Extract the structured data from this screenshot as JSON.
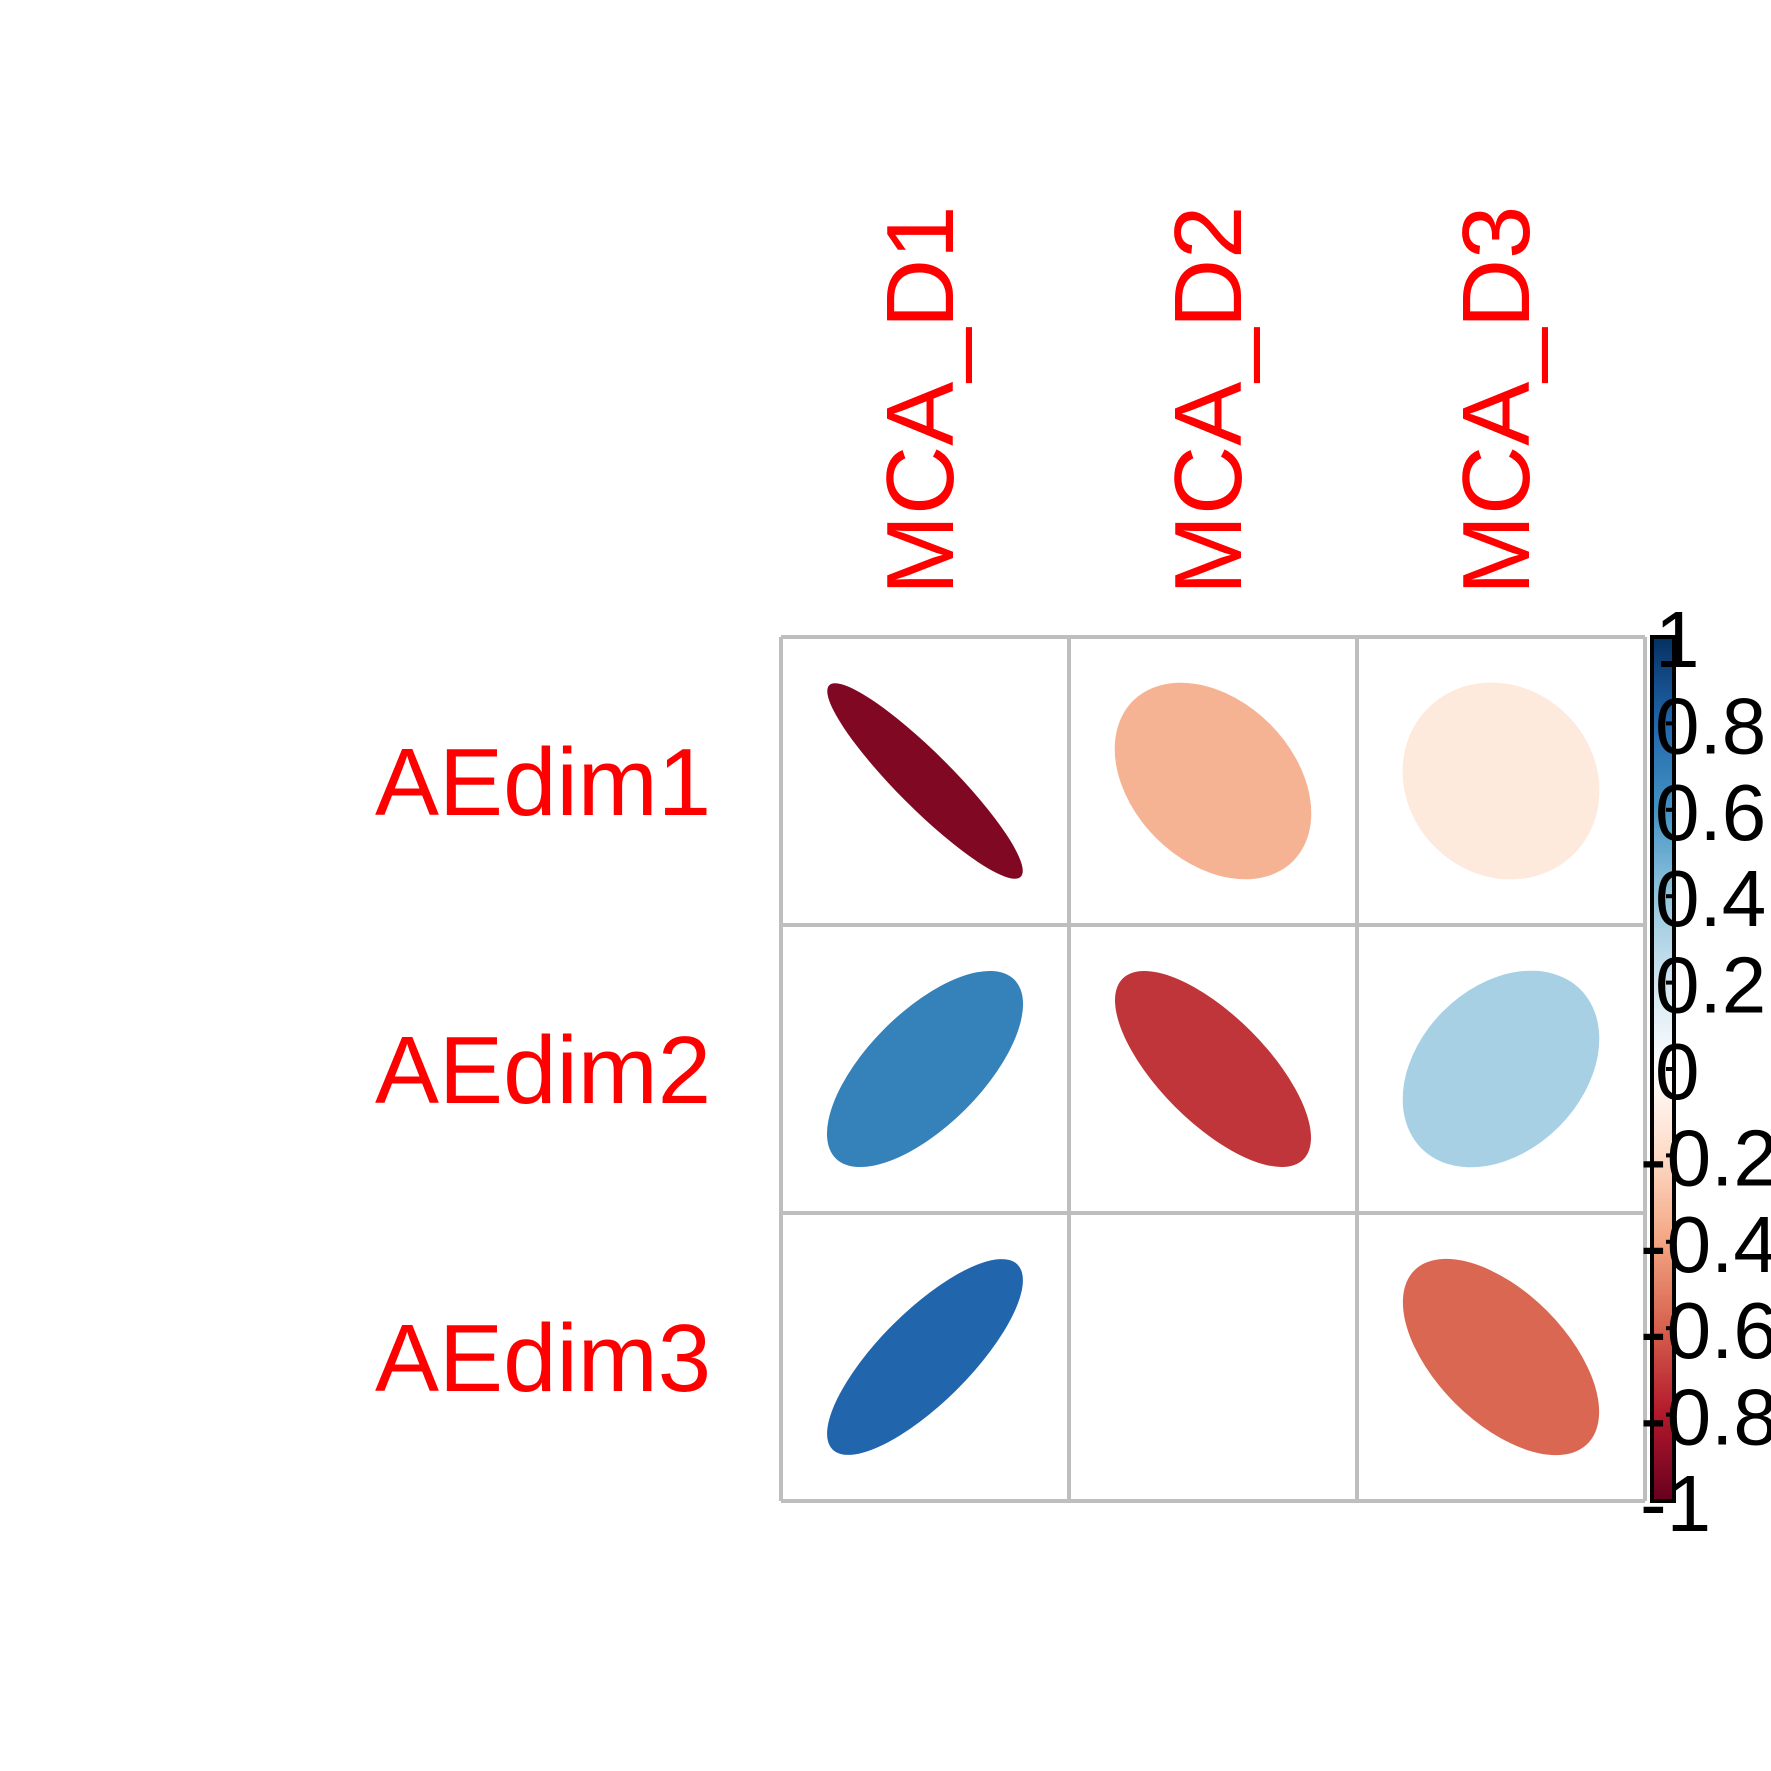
{
  "chart_data": {
    "type": "heatmap",
    "subtype": "correlation-ellipse-matrix",
    "rows": [
      "AEdim1",
      "AEdim2",
      "AEdim3"
    ],
    "columns": [
      "MCA_D1",
      "MCA_D2",
      "MCA_D3"
    ],
    "values": [
      [
        -0.93,
        -0.35,
        -0.12
      ],
      [
        0.68,
        -0.72,
        0.33
      ],
      [
        0.8,
        0.0,
        -0.58
      ]
    ],
    "label_color": "#FF0000",
    "grid_color": "#BEBEBE",
    "colorbar": {
      "range": [
        -1,
        1
      ],
      "ticks": [
        "1",
        "0.8",
        "0.6",
        "0.4",
        "0.2",
        "0",
        "-0.2",
        "-0.4",
        "-0.6",
        "-0.8",
        "-1"
      ],
      "tick_values": [
        1,
        0.8,
        0.6,
        0.4,
        0.2,
        0,
        -0.2,
        -0.4,
        -0.6,
        -0.8,
        -1
      ],
      "palette": [
        "#67001F",
        "#B2182B",
        "#D6604D",
        "#F4A582",
        "#FDDBC7",
        "#FFFFFF",
        "#D1E5F0",
        "#92C5DE",
        "#4393C3",
        "#2166AC",
        "#053061"
      ]
    }
  }
}
